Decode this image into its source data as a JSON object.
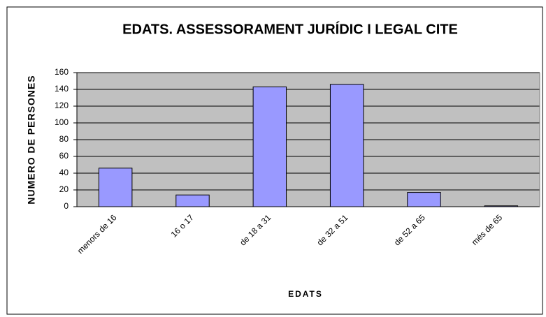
{
  "chart_data": {
    "type": "bar",
    "title": "EDATS. ASSESSORAMENT JURÍDIC I LEGAL  CITE",
    "x_label": "EDATS",
    "y_label": "NUMERO DE PERSONES",
    "categories": [
      "menors de 16",
      "16 o 17",
      "de 18 a 31",
      "de 32 a 51",
      "de 52 a 65",
      "més de 65"
    ],
    "values": [
      46,
      14,
      143,
      146,
      17,
      1
    ],
    "color": "#9999ff",
    "ylim": [
      0,
      160
    ],
    "yticks": [
      0,
      20,
      40,
      60,
      80,
      100,
      120,
      140,
      160
    ],
    "grid": true
  }
}
